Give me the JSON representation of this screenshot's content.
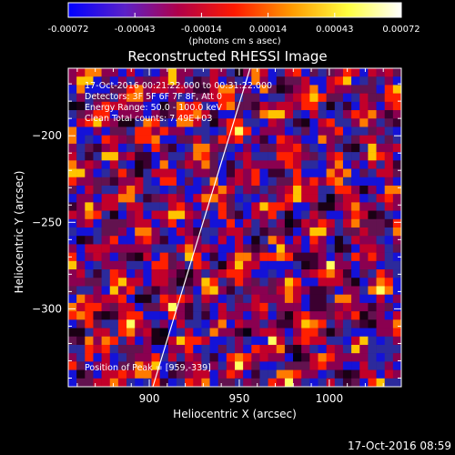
{
  "chart_data": {
    "type": "heatmap",
    "title": "Reconstructed RHESSI Image",
    "xlabel": "Heliocentric X (arcsec)",
    "ylabel": "Heliocentric Y (arcsec)",
    "xlim": [
      855,
      1040
    ],
    "ylim": [
      -345,
      -161
    ],
    "xticks": [
      900,
      950,
      1000
    ],
    "yticks": [
      -200,
      -250,
      -300
    ],
    "colorbar": {
      "range": [
        -0.00072,
        0.00072
      ],
      "ticks": [
        "-0.00072",
        "-0.00043",
        "-0.00014",
        "0.00014",
        "0.00043",
        "0.00072"
      ],
      "label": "(photons cm<sup>-2</sup> s<sup>-1</sup> asec<sup>-2</sup>)",
      "colors": [
        "#0000ff",
        "#5b21c8",
        "#b0004a",
        "#ff1a00",
        "#ff9a00",
        "#ffff40",
        "#ffffff"
      ]
    },
    "info_lines": [
      "17-Oct-2016 00:21:22.000 to 00:31:22.000",
      "Detectors: 3F 5F 6F 7F 8F, Att 0",
      "Energy Range: 50.0 - 100.0 keV",
      "Clean    Total counts: 7.49E+03"
    ],
    "peak_text": "Position of Peak = [959,-339]",
    "peak": [
      959,
      -339
    ],
    "limb_line": {
      "x": [
        902,
        956
      ],
      "y": [
        -345,
        -161
      ]
    },
    "grid": false
  },
  "footer": {
    "timestamp": "17-Oct-2016 08:59"
  }
}
